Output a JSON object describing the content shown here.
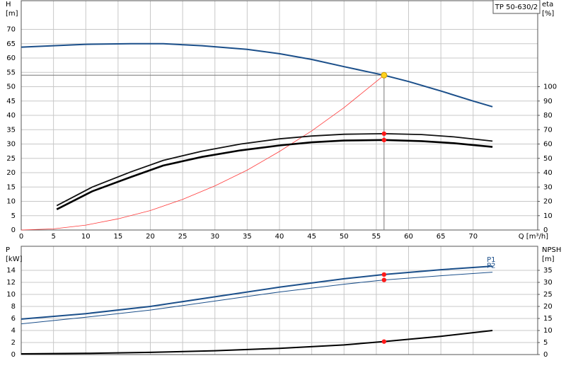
{
  "chart_data": [
    {
      "type": "line",
      "title": "TP 50-630/2",
      "ylabel": "H",
      "yunit": "[m]",
      "y2label": "eta",
      "y2unit": "[%]",
      "xlabel": "Q [m³/h]",
      "xlim": [
        0,
        80
      ],
      "xticks": [
        0,
        5,
        10,
        15,
        20,
        25,
        30,
        35,
        40,
        45,
        50,
        55,
        60,
        65,
        70
      ],
      "ylim": [
        0,
        80
      ],
      "yticks": [
        0,
        5,
        10,
        15,
        20,
        25,
        30,
        35,
        40,
        45,
        50,
        55,
        60,
        65,
        70
      ],
      "y2lim": [
        0,
        160
      ],
      "y2ticks": [
        0,
        10,
        20,
        30,
        40,
        50,
        60,
        70,
        80,
        90,
        100
      ],
      "grid": true,
      "duty_point": {
        "x": 56.2,
        "y": 54,
        "color": "#ffd21f"
      },
      "series": [
        {
          "color": "#1b4f8a",
          "width": 2,
          "axis": "y",
          "x": [
            0,
            5,
            10,
            17,
            22,
            28,
            35,
            40,
            45,
            50,
            56.2,
            60,
            65,
            70,
            73
          ],
          "values": [
            63.8,
            64.3,
            64.8,
            65,
            65,
            64.3,
            63,
            61.5,
            59.5,
            57,
            54,
            51.8,
            48.5,
            45,
            43
          ]
        },
        {
          "color": "#ff3a3a",
          "width": 0.8,
          "axis": "y",
          "x": [
            0,
            5,
            10,
            15,
            20,
            25,
            30,
            35,
            40,
            45,
            50,
            56.2
          ],
          "values": [
            0,
            0.4,
            1.7,
            3.9,
            6.8,
            10.7,
            15.4,
            20.9,
            27.4,
            34.6,
            42.7,
            54
          ]
        },
        {
          "color": "#111111",
          "width": 1.8,
          "axis": "y2",
          "x": [
            5.5,
            11,
            17,
            22,
            28,
            34,
            40,
            45,
            50,
            56.2,
            62,
            67,
            73
          ],
          "values": [
            17,
            30,
            40.6,
            48.6,
            55,
            60,
            63.6,
            65.6,
            66.8,
            67.2,
            66.6,
            65,
            62
          ]
        },
        {
          "color": "#000000",
          "width": 2.6,
          "axis": "y2",
          "x": [
            5.5,
            11,
            17,
            22,
            28,
            34,
            40,
            45,
            50,
            56.2,
            62,
            67,
            73
          ],
          "values": [
            14.4,
            27,
            37,
            45,
            51,
            55.6,
            59,
            61.2,
            62.4,
            62.8,
            62,
            60.6,
            58
          ]
        }
      ]
    },
    {
      "type": "line",
      "ylabel": "P",
      "yunit": "[kW]",
      "y2label": "NPSH",
      "y2unit": "[m]",
      "xlim": [
        0,
        80
      ],
      "xticks": [
        0,
        5,
        10,
        15,
        20,
        25,
        30,
        35,
        40,
        45,
        50,
        55,
        60,
        65,
        70
      ],
      "ylim": [
        0,
        18
      ],
      "yticks": [
        0,
        2,
        4,
        6,
        8,
        10,
        12,
        14
      ],
      "y2lim": [
        0,
        45
      ],
      "y2ticks": [
        0,
        5,
        10,
        15,
        20,
        25,
        30,
        35
      ],
      "grid": true,
      "duty_point": {
        "x": 56.2
      },
      "series": [
        {
          "name": "P1",
          "color": "#1b4f8a",
          "width": 2,
          "axis": "y",
          "x": [
            0,
            10,
            20,
            30,
            40,
            50,
            56.2,
            65,
            73
          ],
          "values": [
            5.9,
            6.8,
            8.0,
            9.6,
            11.2,
            12.6,
            13.3,
            14.1,
            14.7
          ]
        },
        {
          "name": "P2",
          "color": "#1b4f8a",
          "width": 1,
          "axis": "y",
          "x": [
            0,
            10,
            20,
            30,
            40,
            50,
            56.2,
            65,
            73
          ],
          "values": [
            5.1,
            6.2,
            7.4,
            8.9,
            10.4,
            11.7,
            12.4,
            13.1,
            13.7
          ]
        },
        {
          "color": "#000000",
          "width": 2,
          "axis": "y2",
          "x": [
            0,
            10,
            20,
            30,
            40,
            50,
            56.2,
            65,
            73
          ],
          "values": [
            0.3,
            0.5,
            0.9,
            1.6,
            2.6,
            4.0,
            5.4,
            7.6,
            10
          ]
        }
      ]
    }
  ]
}
